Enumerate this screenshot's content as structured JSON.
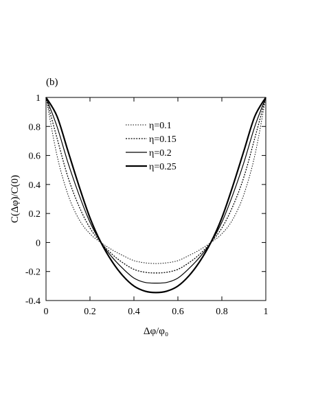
{
  "chart_data": {
    "type": "line",
    "panel_label": "(b)",
    "xlabel": "Δφ/φ₀",
    "ylabel": "C(Δφ)/C(0)",
    "xlim": [
      0,
      1
    ],
    "ylim": [
      -0.4,
      1
    ],
    "x_ticks": [
      0,
      0.2,
      0.4,
      0.6,
      0.8,
      1
    ],
    "x_tick_labels": [
      "0",
      "0.2",
      "0.4",
      "0.6",
      "0.8",
      "1"
    ],
    "y_ticks": [
      -0.4,
      -0.2,
      0,
      0.2,
      0.4,
      0.6,
      0.8,
      1
    ],
    "y_tick_labels": [
      "-0.4",
      "-0.2",
      "0",
      "0.2",
      "0.4",
      "0.6",
      "0.8",
      "1"
    ],
    "grid": false,
    "legend_position": "upper-center",
    "x": [
      0,
      0.05,
      0.1,
      0.15,
      0.2,
      0.25,
      0.3,
      0.35,
      0.4,
      0.45,
      0.5,
      0.55,
      0.6,
      0.65,
      0.7,
      0.75,
      0.8,
      0.85,
      0.9,
      0.95,
      1
    ],
    "series": [
      {
        "name": "η=0.1",
        "style": "dotted-thin",
        "values": [
          1.0,
          0.6,
          0.33,
          0.16,
          0.06,
          0.0,
          -0.05,
          -0.09,
          -0.125,
          -0.14,
          -0.145,
          -0.14,
          -0.125,
          -0.09,
          -0.05,
          0.0,
          0.06,
          0.16,
          0.33,
          0.6,
          1.0
        ]
      },
      {
        "name": "η=0.15",
        "style": "dotted",
        "values": [
          1.0,
          0.72,
          0.45,
          0.25,
          0.1,
          0.0,
          -0.08,
          -0.14,
          -0.185,
          -0.205,
          -0.21,
          -0.205,
          -0.185,
          -0.14,
          -0.08,
          0.0,
          0.1,
          0.25,
          0.45,
          0.72,
          1.0
        ]
      },
      {
        "name": "η=0.2",
        "style": "solid-thin",
        "values": [
          1.0,
          0.8,
          0.55,
          0.33,
          0.14,
          0.0,
          -0.1,
          -0.18,
          -0.245,
          -0.275,
          -0.28,
          -0.275,
          -0.245,
          -0.18,
          -0.1,
          0.0,
          0.14,
          0.33,
          0.55,
          0.8,
          1.0
        ]
      },
      {
        "name": "η=0.25",
        "style": "solid-thick",
        "values": [
          1.0,
          0.87,
          0.63,
          0.39,
          0.17,
          0.0,
          -0.13,
          -0.23,
          -0.3,
          -0.335,
          -0.345,
          -0.335,
          -0.3,
          -0.23,
          -0.13,
          0.0,
          0.17,
          0.39,
          0.63,
          0.87,
          1.0
        ]
      }
    ]
  }
}
